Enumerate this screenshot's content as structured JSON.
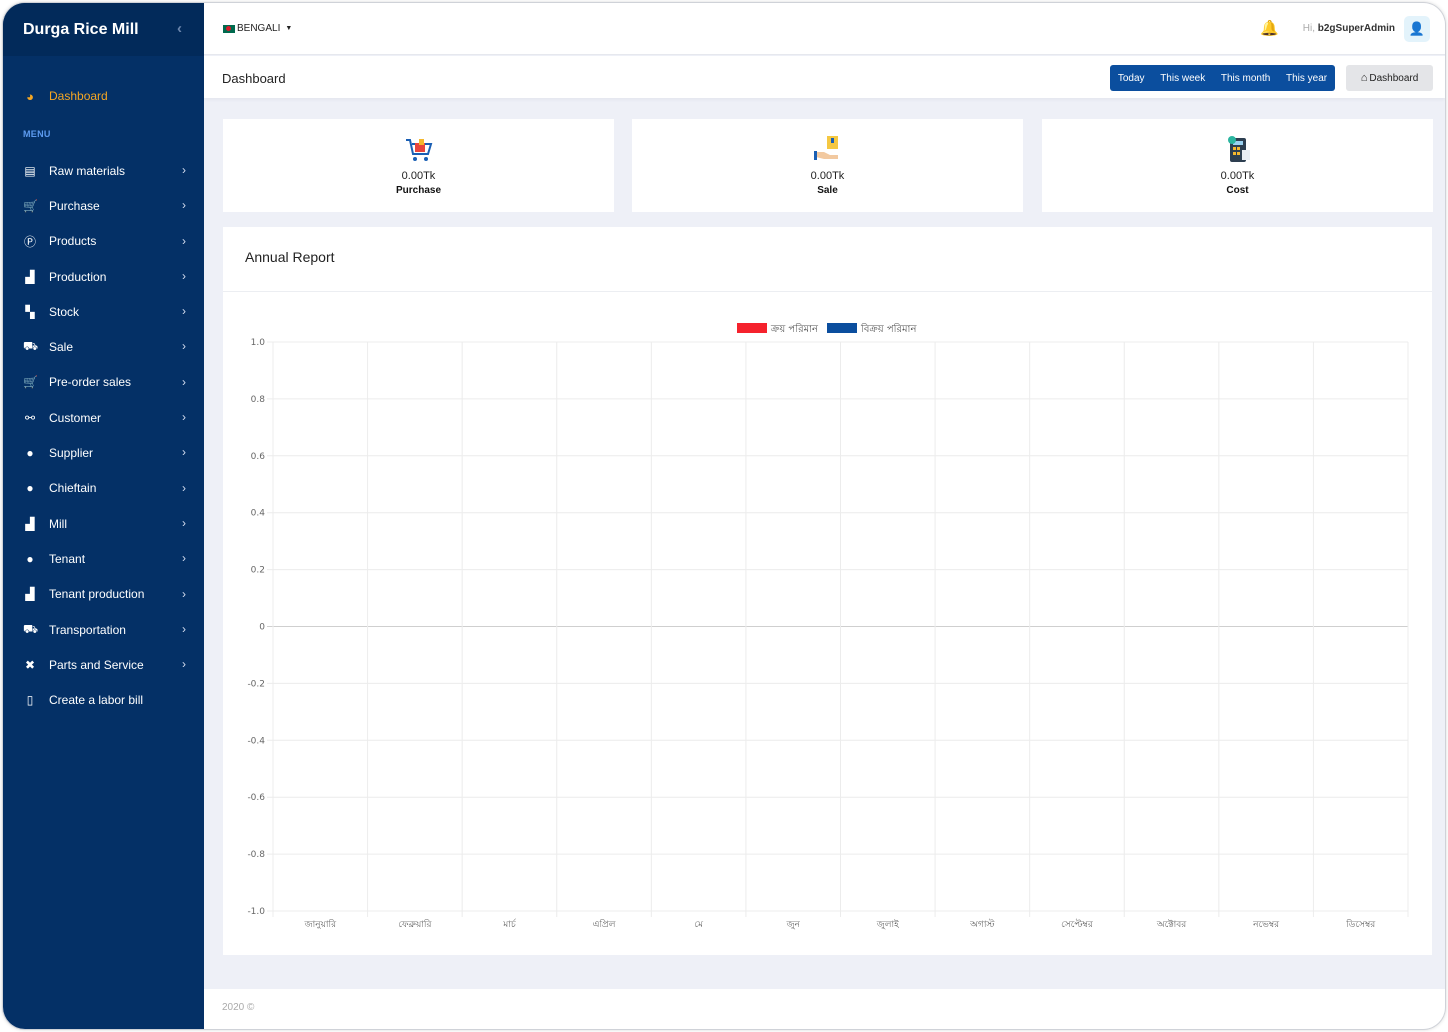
{
  "app": {
    "brand": "Durga Rice Mill",
    "collapse_icon": "‹"
  },
  "sidebar": {
    "dashboard_label": "Dashboard",
    "menu_label": "MENU",
    "items": [
      {
        "label": "Raw materials",
        "icon": "toolbox-icon",
        "glyph": "▤",
        "chevron": true
      },
      {
        "label": "Purchase",
        "icon": "cart-icon",
        "glyph": "🛒",
        "chevron": true
      },
      {
        "label": "Products",
        "icon": "product-icon",
        "glyph": "Ⓟ",
        "chevron": true
      },
      {
        "label": "Production",
        "icon": "industry-icon",
        "glyph": "▟",
        "chevron": true
      },
      {
        "label": "Stock",
        "icon": "boxes-icon",
        "glyph": "▚",
        "chevron": true
      },
      {
        "label": "Sale",
        "icon": "cart-outline-icon",
        "glyph": "⛟",
        "chevron": true
      },
      {
        "label": "Pre-order sales",
        "icon": "cart-icon",
        "glyph": "🛒",
        "chevron": true
      },
      {
        "label": "Customer",
        "icon": "handshake-icon",
        "glyph": "⚯",
        "chevron": true
      },
      {
        "label": "Supplier",
        "icon": "user-icon",
        "glyph": "●",
        "chevron": true
      },
      {
        "label": "Chieftain",
        "icon": "user-icon",
        "glyph": "●",
        "chevron": true
      },
      {
        "label": "Mill",
        "icon": "industry-icon",
        "glyph": "▟",
        "chevron": true
      },
      {
        "label": "Tenant",
        "icon": "user-icon",
        "glyph": "●",
        "chevron": true
      },
      {
        "label": "Tenant production",
        "icon": "industry-icon",
        "glyph": "▟",
        "chevron": true
      },
      {
        "label": "Transportation",
        "icon": "truck-icon",
        "glyph": "⛟",
        "chevron": true
      },
      {
        "label": "Parts and Service",
        "icon": "tools-icon",
        "glyph": "✖",
        "chevron": true
      },
      {
        "label": "Create a labor bill",
        "icon": "file-icon",
        "glyph": "▯",
        "chevron": false
      }
    ]
  },
  "topbar": {
    "language": "BENGALI",
    "greeting_hi": "Hi,",
    "username": "b2gSuperAdmin"
  },
  "pageheader": {
    "title": "Dashboard",
    "periods": [
      "Today",
      "This week",
      "This month",
      "This year"
    ],
    "breadcrumb": "Dashboard"
  },
  "stats": [
    {
      "value": "0.00Tk",
      "label": "Purchase"
    },
    {
      "value": "0.00Tk",
      "label": "Sale"
    },
    {
      "value": "0.00Tk",
      "label": "Cost"
    }
  ],
  "report": {
    "title": "Annual Report"
  },
  "chart_data": {
    "type": "bar",
    "title": "Annual Report",
    "categories": [
      "জানুয়ারি",
      "ফেব্রুয়ারি",
      "মার্চ",
      "এপ্রিল",
      "মে",
      "জুন",
      "জুলাই",
      "অগাস্ট",
      "সেপ্টেম্বর",
      "অক্টোবর",
      "নভেম্বর",
      "ডিসেম্বর"
    ],
    "series": [
      {
        "name": "ক্রয় পরিমান",
        "color": "#f5222d",
        "values": [
          0,
          0,
          0,
          0,
          0,
          0,
          0,
          0,
          0,
          0,
          0,
          0
        ]
      },
      {
        "name": "বিক্রয় পরিমান",
        "color": "#0b4e9e",
        "values": [
          0,
          0,
          0,
          0,
          0,
          0,
          0,
          0,
          0,
          0,
          0,
          0
        ]
      }
    ],
    "yticks": [
      "1.0",
      "0.8",
      "0.6",
      "0.4",
      "0.2",
      "0",
      "-0.2",
      "-0.4",
      "-0.6",
      "-0.8",
      "-1.0"
    ],
    "ylim": [
      -1,
      1
    ],
    "grid": true,
    "legend": "top-center"
  },
  "footer": {
    "text": "2020 ©"
  }
}
